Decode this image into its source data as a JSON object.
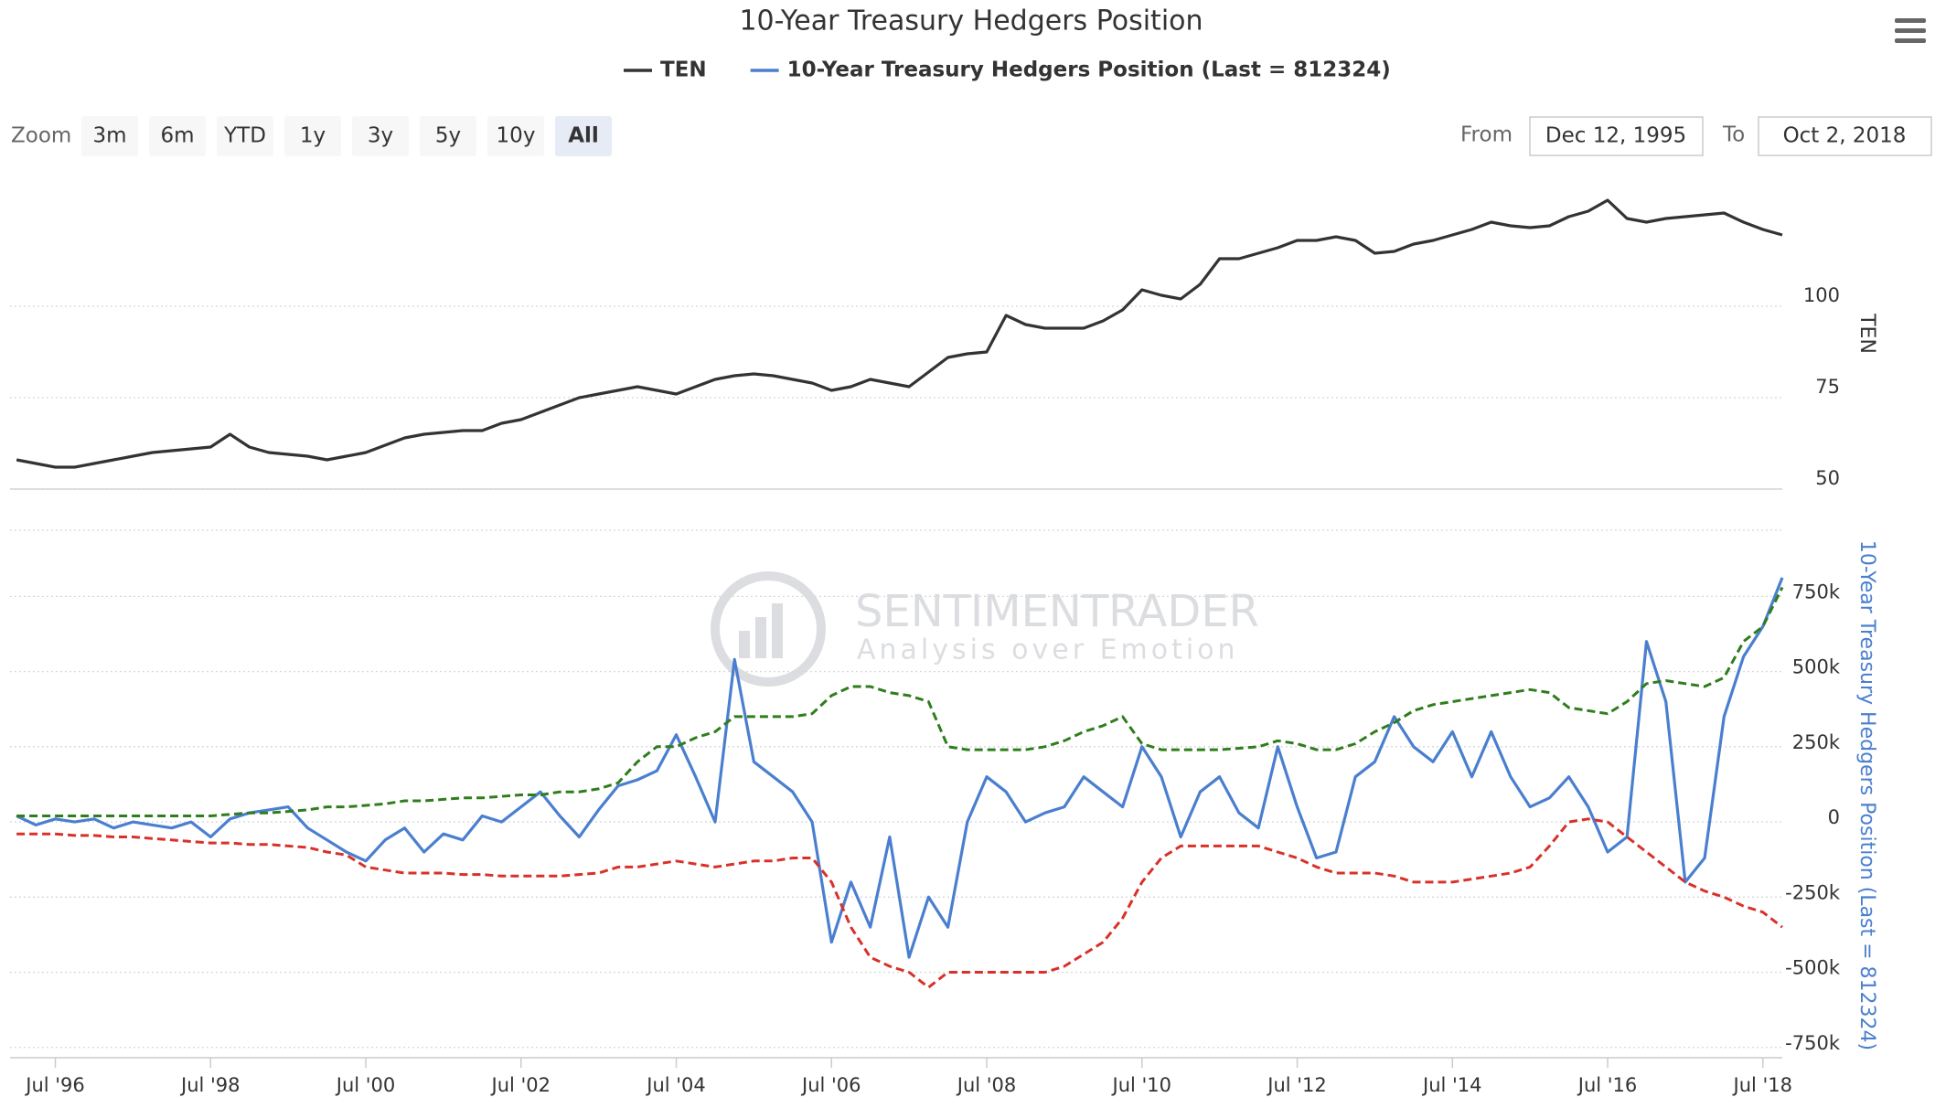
{
  "chart_data": {
    "type": "line",
    "title": "10-Year Treasury Hedgers Position",
    "ylabel": "TEN",
    "y2label": "10-Year Treasury Hedgers Position (Last = 812324)",
    "xlim": [
      "1995-12",
      "2018-10"
    ],
    "xticks": [
      {
        "value": "1996-07",
        "label": "Jul '96"
      },
      {
        "value": "1998-07",
        "label": "Jul '98"
      },
      {
        "value": "2000-07",
        "label": "Jul '00"
      },
      {
        "value": "2002-07",
        "label": "Jul '02"
      },
      {
        "value": "2004-07",
        "label": "Jul '04"
      },
      {
        "value": "2006-07",
        "label": "Jul '06"
      },
      {
        "value": "2008-07",
        "label": "Jul '08"
      },
      {
        "value": "2010-07",
        "label": "Jul '10"
      },
      {
        "value": "2012-07",
        "label": "Jul '12"
      },
      {
        "value": "2014-07",
        "label": "Jul '14"
      },
      {
        "value": "2016-07",
        "label": "Jul '16"
      },
      {
        "value": "2018-07",
        "label": "Jul '18"
      }
    ],
    "ylim": [
      50,
      133
    ],
    "yticks": [
      50,
      75,
      100
    ],
    "y2lim": [
      -775000,
      970000
    ],
    "y2ticks": [
      {
        "value": -750000,
        "label": "-750k"
      },
      {
        "value": -500000,
        "label": "-500k"
      },
      {
        "value": -250000,
        "label": "-250k"
      },
      0,
      {
        "value": 250000,
        "label": "250k"
      },
      {
        "value": 500000,
        "label": "500k"
      },
      {
        "value": 750000,
        "label": "750k"
      }
    ],
    "grid": true,
    "x": [
      "1996-01",
      "1996-04",
      "1996-07",
      "1996-10",
      "1997-01",
      "1997-04",
      "1997-07",
      "1997-10",
      "1998-01",
      "1998-04",
      "1998-07",
      "1998-10",
      "1999-01",
      "1999-04",
      "1999-07",
      "1999-10",
      "2000-01",
      "2000-04",
      "2000-07",
      "2000-10",
      "2001-01",
      "2001-04",
      "2001-07",
      "2001-10",
      "2002-01",
      "2002-04",
      "2002-07",
      "2002-10",
      "2003-01",
      "2003-04",
      "2003-07",
      "2003-10",
      "2004-01",
      "2004-04",
      "2004-07",
      "2004-10",
      "2005-01",
      "2005-04",
      "2005-07",
      "2005-10",
      "2006-01",
      "2006-04",
      "2006-07",
      "2006-10",
      "2007-01",
      "2007-04",
      "2007-07",
      "2007-10",
      "2008-01",
      "2008-04",
      "2008-07",
      "2008-10",
      "2009-01",
      "2009-04",
      "2009-07",
      "2009-10",
      "2010-01",
      "2010-04",
      "2010-07",
      "2010-10",
      "2011-01",
      "2011-04",
      "2011-07",
      "2011-10",
      "2012-01",
      "2012-04",
      "2012-07",
      "2012-10",
      "2013-01",
      "2013-04",
      "2013-07",
      "2013-10",
      "2014-01",
      "2014-04",
      "2014-07",
      "2014-10",
      "2015-01",
      "2015-04",
      "2015-07",
      "2015-10",
      "2016-01",
      "2016-04",
      "2016-07",
      "2016-10",
      "2017-01",
      "2017-04",
      "2017-07",
      "2017-10",
      "2018-01",
      "2018-04",
      "2018-07",
      "2018-10"
    ],
    "series": [
      {
        "name": "TEN",
        "color": "#333333",
        "axis": "y",
        "values": [
          58,
          57,
          56,
          56,
          57,
          58,
          59,
          60,
          60.5,
          61,
          61.5,
          65,
          61.5,
          60,
          59.5,
          59,
          58,
          59,
          60,
          62,
          64,
          65,
          65.5,
          66,
          66,
          68,
          69,
          71,
          73,
          75,
          76,
          77,
          78,
          77,
          76,
          78,
          80,
          81,
          81.5,
          81,
          80,
          79,
          77,
          78,
          80,
          79,
          78,
          82,
          86,
          87,
          87.5,
          97.5,
          95,
          94,
          94,
          94,
          96,
          99,
          104.5,
          103,
          102,
          106,
          113,
          113,
          114.5,
          116,
          118,
          118,
          119,
          118,
          114.5,
          115,
          117,
          118,
          119.5,
          121,
          123,
          122,
          121.5,
          122,
          124.5,
          126,
          129,
          124,
          123,
          124,
          124.5,
          125,
          125.5,
          123,
          121,
          119.5
        ]
      },
      {
        "name": "10-Year Treasury Hedgers Position (Last = 812324)",
        "color": "#4a7fcf",
        "axis": "y2",
        "values": [
          20000,
          -10000,
          10000,
          0,
          10000,
          -20000,
          0,
          -10000,
          -20000,
          0,
          -50000,
          10000,
          30000,
          40000,
          50000,
          -20000,
          -60000,
          -100000,
          -130000,
          -60000,
          -20000,
          -100000,
          -40000,
          -60000,
          20000,
          0,
          50000,
          100000,
          20000,
          -50000,
          40000,
          120000,
          140000,
          170000,
          290000,
          150000,
          0,
          540000,
          200000,
          150000,
          100000,
          0,
          -400000,
          -200000,
          -350000,
          -50000,
          -450000,
          -250000,
          -350000,
          0,
          150000,
          100000,
          0,
          30000,
          50000,
          150000,
          100000,
          50000,
          250000,
          150000,
          -50000,
          100000,
          150000,
          30000,
          -20000,
          250000,
          50000,
          -120000,
          -100000,
          150000,
          200000,
          350000,
          250000,
          200000,
          300000,
          150000,
          300000,
          150000,
          50000,
          80000,
          150000,
          50000,
          -100000,
          -50000,
          600000,
          400000,
          -200000,
          -120000,
          350000,
          550000,
          650000,
          812324
        ]
      },
      {
        "color": "#2f7d1c",
        "axis": "y2",
        "dashed": true,
        "values": [
          20000,
          20000,
          20000,
          20000,
          20000,
          20000,
          20000,
          20000,
          20000,
          20000,
          20000,
          25000,
          30000,
          30000,
          35000,
          40000,
          50000,
          50000,
          55000,
          60000,
          70000,
          70000,
          75000,
          80000,
          80000,
          85000,
          90000,
          90000,
          100000,
          100000,
          110000,
          130000,
          200000,
          250000,
          250000,
          280000,
          300000,
          350000,
          350000,
          350000,
          350000,
          360000,
          420000,
          450000,
          450000,
          430000,
          420000,
          400000,
          250000,
          240000,
          240000,
          240000,
          240000,
          250000,
          270000,
          300000,
          320000,
          350000,
          260000,
          240000,
          240000,
          240000,
          240000,
          245000,
          250000,
          270000,
          260000,
          240000,
          240000,
          260000,
          300000,
          330000,
          370000,
          390000,
          400000,
          410000,
          420000,
          430000,
          440000,
          430000,
          380000,
          370000,
          360000,
          400000,
          460000,
          470000,
          460000,
          450000,
          480000,
          600000,
          650000,
          780000
        ]
      },
      {
        "color": "#d8312a",
        "axis": "y2",
        "dashed": true,
        "values": [
          -40000,
          -40000,
          -40000,
          -45000,
          -45000,
          -50000,
          -50000,
          -55000,
          -60000,
          -65000,
          -70000,
          -70000,
          -75000,
          -75000,
          -80000,
          -85000,
          -100000,
          -110000,
          -150000,
          -160000,
          -170000,
          -170000,
          -170000,
          -175000,
          -175000,
          -180000,
          -180000,
          -180000,
          -180000,
          -175000,
          -170000,
          -150000,
          -150000,
          -140000,
          -130000,
          -140000,
          -150000,
          -140000,
          -130000,
          -130000,
          -120000,
          -120000,
          -200000,
          -350000,
          -450000,
          -480000,
          -500000,
          -550000,
          -500000,
          -500000,
          -500000,
          -500000,
          -500000,
          -500000,
          -480000,
          -440000,
          -400000,
          -320000,
          -200000,
          -120000,
          -80000,
          -80000,
          -80000,
          -80000,
          -80000,
          -100000,
          -120000,
          -150000,
          -170000,
          -170000,
          -170000,
          -180000,
          -200000,
          -200000,
          -200000,
          -190000,
          -180000,
          -170000,
          -150000,
          -80000,
          0,
          10000,
          0,
          -50000,
          -100000,
          -150000,
          -200000,
          -230000,
          -250000,
          -280000,
          -300000,
          -350000
        ]
      }
    ]
  },
  "ui": {
    "zoom_label": "Zoom",
    "zoom_buttons": [
      "3m",
      "6m",
      "YTD",
      "1y",
      "3y",
      "5y",
      "10y",
      "All"
    ],
    "zoom_selected": "All",
    "from_label": "From",
    "from": "Dec 12, 1995",
    "to_label": "To",
    "to": "Oct 2, 2018",
    "watermark": "SENTIMENTRADER",
    "watermark_tagline": "Analysis over Emotion"
  }
}
